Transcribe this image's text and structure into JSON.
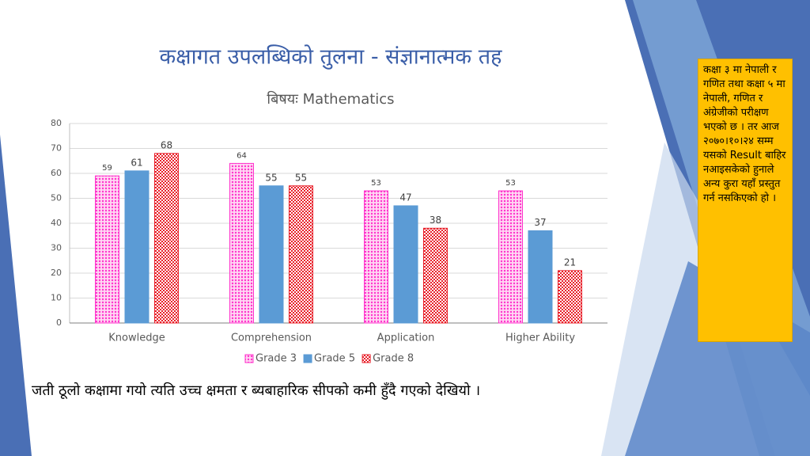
{
  "title": "कक्षागत उपलब्धिको तुलना - संज्ञानात्मक तह",
  "note": "कक्षा ३ मा नेपाली र गणित तथा कक्षा ५ मा नेपाली, गणित र अंग्रेजीको परीक्षण भएको छ । तर आज २०७०।१०।२४ सम्म यसको Result बाहिर नआइसकेको हुनाले अन्य कुरा यहाँ प्रस्तुत गर्न नसकिएको हो ।",
  "caption": "जती ठूलो कक्षामा गयो त्यति उच्च क्षमता र ब्यबाहारिक सीपको कमी हुँदै गएको देखियो ।",
  "chart_data": {
    "type": "bar",
    "title": "बिषयः Mathematics",
    "categories": [
      "Knowledge",
      "Comprehension",
      "Application",
      "Higher Ability"
    ],
    "series": [
      {
        "name": "Grade 3",
        "color": "#ff33cc",
        "values": [
          59,
          64,
          53,
          53
        ]
      },
      {
        "name": "Grade 5",
        "color": "#5b9bd5",
        "values": [
          61,
          55,
          47,
          37
        ]
      },
      {
        "name": "Grade 8",
        "color": "#e8202a",
        "values": [
          68,
          55,
          38,
          21
        ]
      }
    ],
    "ylim": [
      0,
      80
    ],
    "yticks": [
      0,
      10,
      20,
      30,
      40,
      50,
      60,
      70,
      80
    ],
    "grid": true,
    "legend": "bottom"
  }
}
